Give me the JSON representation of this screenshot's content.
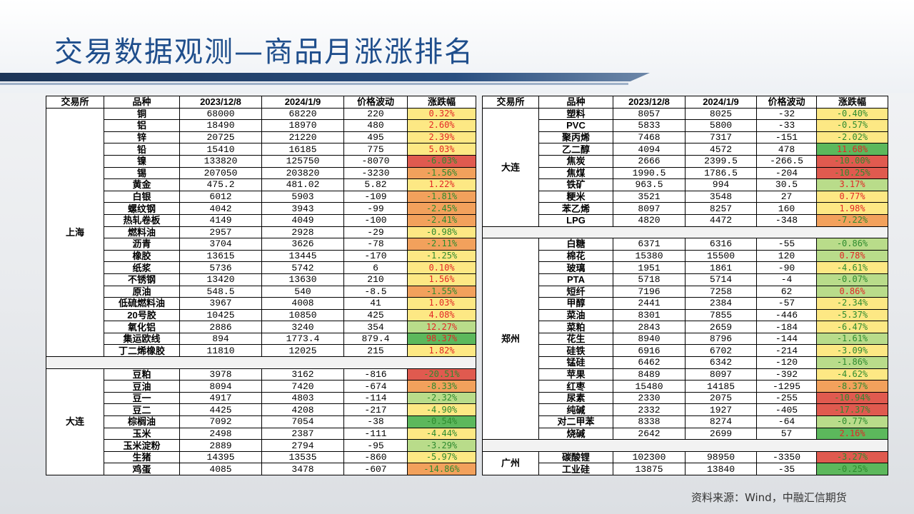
{
  "title": "交易数据观测—商品月涨涨排名",
  "source": "资料来源：Wind，中融汇信期货",
  "colors": {
    "pct_red": "#e05a4f",
    "pct_orange": "#f2a15c",
    "pct_yellow": "#fde884",
    "pct_lightgreen": "#b9dc8a",
    "pct_green": "#5cb85c",
    "text_red": "#e32626",
    "text_green": "#2e8b2e",
    "title_blue": "#1f4e8c"
  },
  "headers": [
    "交易所",
    "品种",
    "2023/12/8",
    "2024/1/9",
    "价格波动",
    "涨跌幅"
  ],
  "left_groups": [
    {
      "exchange": "上海",
      "rows": [
        {
          "name": "铜",
          "v1": "68000",
          "v2": "68220",
          "chg": "220",
          "pct": "0.32%",
          "bg": "pct_yellow",
          "fg": "text_red"
        },
        {
          "name": "铝",
          "v1": "18490",
          "v2": "18970",
          "chg": "480",
          "pct": "2.60%",
          "bg": "pct_yellow",
          "fg": "text_red"
        },
        {
          "name": "锌",
          "v1": "20725",
          "v2": "21220",
          "chg": "495",
          "pct": "2.39%",
          "bg": "pct_yellow",
          "fg": "text_red"
        },
        {
          "name": "铅",
          "v1": "15410",
          "v2": "16185",
          "chg": "775",
          "pct": "5.03%",
          "bg": "pct_yellow",
          "fg": "text_red"
        },
        {
          "name": "镍",
          "v1": "133820",
          "v2": "125750",
          "chg": "-8070",
          "pct": "-6.03%",
          "bg": "pct_red",
          "fg": "text_green"
        },
        {
          "name": "锡",
          "v1": "207050",
          "v2": "203820",
          "chg": "-3230",
          "pct": "-1.56%",
          "bg": "pct_orange",
          "fg": "text_green"
        },
        {
          "name": "黄金",
          "v1": "475.2",
          "v2": "481.02",
          "chg": "5.82",
          "pct": "1.22%",
          "bg": "pct_yellow",
          "fg": "text_red"
        },
        {
          "name": "白银",
          "v1": "6012",
          "v2": "5903",
          "chg": "-109",
          "pct": "-1.81%",
          "bg": "pct_orange",
          "fg": "text_green"
        },
        {
          "name": "螺纹钢",
          "v1": "4042",
          "v2": "3943",
          "chg": "-99",
          "pct": "-2.45%",
          "bg": "pct_orange",
          "fg": "text_green"
        },
        {
          "name": "热轧卷板",
          "v1": "4149",
          "v2": "4049",
          "chg": "-100",
          "pct": "-2.41%",
          "bg": "pct_orange",
          "fg": "text_green"
        },
        {
          "name": "燃料油",
          "v1": "2957",
          "v2": "2928",
          "chg": "-29",
          "pct": "-0.98%",
          "bg": "pct_yellow",
          "fg": "text_green"
        },
        {
          "name": "沥青",
          "v1": "3704",
          "v2": "3626",
          "chg": "-78",
          "pct": "-2.11%",
          "bg": "pct_orange",
          "fg": "text_green"
        },
        {
          "name": "橡胶",
          "v1": "13615",
          "v2": "13445",
          "chg": "-170",
          "pct": "-1.25%",
          "bg": "pct_yellow",
          "fg": "text_green"
        },
        {
          "name": "纸浆",
          "v1": "5736",
          "v2": "5742",
          "chg": "6",
          "pct": "0.10%",
          "bg": "pct_yellow",
          "fg": "text_red"
        },
        {
          "name": "不锈钢",
          "v1": "13420",
          "v2": "13630",
          "chg": "210",
          "pct": "1.56%",
          "bg": "pct_yellow",
          "fg": "text_red"
        },
        {
          "name": "原油",
          "v1": "548.5",
          "v2": "540",
          "chg": "-8.5",
          "pct": "-1.55%",
          "bg": "pct_orange",
          "fg": "text_green"
        },
        {
          "name": "低硫燃料油",
          "v1": "3967",
          "v2": "4008",
          "chg": "41",
          "pct": "1.03%",
          "bg": "pct_yellow",
          "fg": "text_red"
        },
        {
          "name": "20号胶",
          "v1": "10425",
          "v2": "10850",
          "chg": "425",
          "pct": "4.08%",
          "bg": "pct_yellow",
          "fg": "text_red"
        },
        {
          "name": "氧化铝",
          "v1": "2886",
          "v2": "3240",
          "chg": "354",
          "pct": "12.27%",
          "bg": "pct_lightgreen",
          "fg": "text_red"
        },
        {
          "name": "集运欧线",
          "v1": "894",
          "v2": "1773.4",
          "chg": "879.4",
          "pct": "98.37%",
          "bg": "pct_green",
          "fg": "text_red"
        },
        {
          "name": "丁二烯橡胶",
          "v1": "11810",
          "v2": "12025",
          "chg": "215",
          "pct": "1.82%",
          "bg": "pct_yellow",
          "fg": "text_red"
        }
      ]
    },
    {
      "exchange": "大连",
      "rows": [
        {
          "name": "豆粕",
          "v1": "3978",
          "v2": "3162",
          "chg": "-816",
          "pct": "-20.51%",
          "bg": "pct_red",
          "fg": "text_green"
        },
        {
          "name": "豆油",
          "v1": "8094",
          "v2": "7420",
          "chg": "-674",
          "pct": "-8.33%",
          "bg": "pct_orange",
          "fg": "text_green"
        },
        {
          "name": "豆一",
          "v1": "4917",
          "v2": "4803",
          "chg": "-114",
          "pct": "-2.32%",
          "bg": "pct_lightgreen",
          "fg": "text_green"
        },
        {
          "name": "豆二",
          "v1": "4425",
          "v2": "4208",
          "chg": "-217",
          "pct": "-4.90%",
          "bg": "pct_yellow",
          "fg": "text_green"
        },
        {
          "name": "棕榈油",
          "v1": "7092",
          "v2": "7054",
          "chg": "-38",
          "pct": "-0.54%",
          "bg": "pct_green",
          "fg": "text_green"
        },
        {
          "name": "玉米",
          "v1": "2498",
          "v2": "2387",
          "chg": "-111",
          "pct": "-4.44%",
          "bg": "pct_yellow",
          "fg": "text_green"
        },
        {
          "name": "玉米淀粉",
          "v1": "2889",
          "v2": "2794",
          "chg": "-95",
          "pct": "-3.29%",
          "bg": "pct_lightgreen",
          "fg": "text_green"
        },
        {
          "name": "生猪",
          "v1": "14395",
          "v2": "13535",
          "chg": "-860",
          "pct": "-5.97%",
          "bg": "pct_yellow",
          "fg": "text_green"
        },
        {
          "name": "鸡蛋",
          "v1": "4085",
          "v2": "3478",
          "chg": "-607",
          "pct": "-14.86%",
          "bg": "pct_orange",
          "fg": "text_green"
        }
      ]
    }
  ],
  "right_groups": [
    {
      "exchange": "大连",
      "rows": [
        {
          "name": "塑料",
          "v1": "8057",
          "v2": "8025",
          "chg": "-32",
          "pct": "-0.40%",
          "bg": "pct_yellow",
          "fg": "text_green"
        },
        {
          "name": "PVC",
          "v1": "5833",
          "v2": "5800",
          "chg": "-33",
          "pct": "-0.57%",
          "bg": "pct_yellow",
          "fg": "text_green"
        },
        {
          "name": "聚丙烯",
          "v1": "7468",
          "v2": "7317",
          "chg": "-151",
          "pct": "-2.02%",
          "bg": "pct_yellow",
          "fg": "text_green"
        },
        {
          "name": "乙二醇",
          "v1": "4094",
          "v2": "4572",
          "chg": "478",
          "pct": "11.68%",
          "bg": "pct_green",
          "fg": "text_red"
        },
        {
          "name": "焦炭",
          "v1": "2666",
          "v2": "2399.5",
          "chg": "-266.5",
          "pct": "-10.00%",
          "bg": "pct_red",
          "fg": "text_green"
        },
        {
          "name": "焦煤",
          "v1": "1990.5",
          "v2": "1786.5",
          "chg": "-204",
          "pct": "-10.25%",
          "bg": "pct_red",
          "fg": "text_green"
        },
        {
          "name": "铁矿",
          "v1": "963.5",
          "v2": "994",
          "chg": "30.5",
          "pct": "3.17%",
          "bg": "pct_lightgreen",
          "fg": "text_red"
        },
        {
          "name": "粳米",
          "v1": "3521",
          "v2": "3548",
          "chg": "27",
          "pct": "0.77%",
          "bg": "pct_yellow",
          "fg": "text_red"
        },
        {
          "name": "苯乙烯",
          "v1": "8097",
          "v2": "8257",
          "chg": "160",
          "pct": "1.98%",
          "bg": "pct_yellow",
          "fg": "text_red"
        },
        {
          "name": "LPG",
          "v1": "4820",
          "v2": "4472",
          "chg": "-348",
          "pct": "-7.22%",
          "bg": "pct_orange",
          "fg": "text_green"
        }
      ]
    },
    {
      "exchange": "郑州",
      "rows": [
        {
          "name": "白糖",
          "v1": "6371",
          "v2": "6316",
          "chg": "-55",
          "pct": "-0.86%",
          "bg": "pct_lightgreen",
          "fg": "text_green"
        },
        {
          "name": "棉花",
          "v1": "15380",
          "v2": "15500",
          "chg": "120",
          "pct": "0.78%",
          "bg": "pct_lightgreen",
          "fg": "text_red"
        },
        {
          "name": "玻璃",
          "v1": "1951",
          "v2": "1861",
          "chg": "-90",
          "pct": "-4.61%",
          "bg": "pct_yellow",
          "fg": "text_green"
        },
        {
          "name": "PTA",
          "v1": "5718",
          "v2": "5714",
          "chg": "-4",
          "pct": "-0.07%",
          "bg": "pct_lightgreen",
          "fg": "text_green"
        },
        {
          "name": "短纤",
          "v1": "7196",
          "v2": "7258",
          "chg": "62",
          "pct": "0.86%",
          "bg": "pct_lightgreen",
          "fg": "text_red"
        },
        {
          "name": "甲醇",
          "v1": "2441",
          "v2": "2384",
          "chg": "-57",
          "pct": "-2.34%",
          "bg": "pct_yellow",
          "fg": "text_green"
        },
        {
          "name": "菜油",
          "v1": "8301",
          "v2": "7855",
          "chg": "-446",
          "pct": "-5.37%",
          "bg": "pct_yellow",
          "fg": "text_green"
        },
        {
          "name": "菜粕",
          "v1": "2843",
          "v2": "2659",
          "chg": "-184",
          "pct": "-6.47%",
          "bg": "pct_yellow",
          "fg": "text_green"
        },
        {
          "name": "花生",
          "v1": "8940",
          "v2": "8796",
          "chg": "-144",
          "pct": "-1.61%",
          "bg": "pct_lightgreen",
          "fg": "text_green"
        },
        {
          "name": "硅铁",
          "v1": "6916",
          "v2": "6702",
          "chg": "-214",
          "pct": "-3.09%",
          "bg": "pct_yellow",
          "fg": "text_green"
        },
        {
          "name": "锰硅",
          "v1": "6462",
          "v2": "6342",
          "chg": "-120",
          "pct": "-1.86%",
          "bg": "pct_lightgreen",
          "fg": "text_green"
        },
        {
          "name": "苹果",
          "v1": "8489",
          "v2": "8097",
          "chg": "-392",
          "pct": "-4.62%",
          "bg": "pct_yellow",
          "fg": "text_green"
        },
        {
          "name": "红枣",
          "v1": "15480",
          "v2": "14185",
          "chg": "-1295",
          "pct": "-8.37%",
          "bg": "pct_orange",
          "fg": "text_green"
        },
        {
          "name": "尿素",
          "v1": "2330",
          "v2": "2075",
          "chg": "-255",
          "pct": "-10.94%",
          "bg": "pct_red",
          "fg": "text_green"
        },
        {
          "name": "纯碱",
          "v1": "2332",
          "v2": "1927",
          "chg": "-405",
          "pct": "-17.37%",
          "bg": "pct_red",
          "fg": "text_green"
        },
        {
          "name": "对二甲苯",
          "v1": "8338",
          "v2": "8274",
          "chg": "-64",
          "pct": "-0.77%",
          "bg": "pct_lightgreen",
          "fg": "text_green"
        },
        {
          "name": "烧碱",
          "v1": "2642",
          "v2": "2699",
          "chg": "57",
          "pct": "2.16%",
          "bg": "pct_green",
          "fg": "text_red"
        }
      ]
    },
    {
      "exchange": "广州",
      "rows": [
        {
          "name": "碳酸锂",
          "v1": "102300",
          "v2": "98950",
          "chg": "-3350",
          "pct": "-3.27%",
          "bg": "pct_red",
          "fg": "text_green"
        },
        {
          "name": "工业硅",
          "v1": "13875",
          "v2": "13840",
          "chg": "-35",
          "pct": "-0.25%",
          "bg": "pct_green",
          "fg": "text_green"
        }
      ]
    }
  ]
}
